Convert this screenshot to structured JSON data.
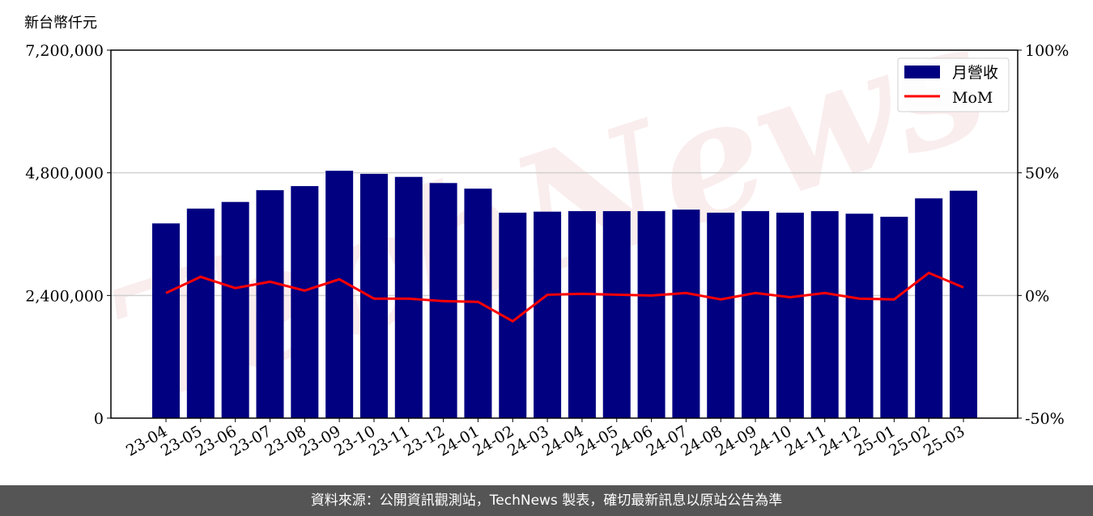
{
  "chart_data": {
    "type": "bar+line",
    "ylabel": "新台幣仟元",
    "ylim": [
      0,
      7200000
    ],
    "yticks": [
      "0",
      "2,400,000",
      "4,800,000",
      "7,200,000"
    ],
    "ylim_right": [
      -50,
      100
    ],
    "yticks_right": [
      "-50%",
      "0%",
      "50%",
      "100%"
    ],
    "grid": "horizontal",
    "legend_placement": "top-right",
    "categories": [
      "23-04",
      "23-05",
      "23-06",
      "23-07",
      "23-08",
      "23-09",
      "23-10",
      "23-11",
      "23-12",
      "24-01",
      "24-02",
      "24-03",
      "24-04",
      "24-05",
      "24-06",
      "24-07",
      "24-08",
      "24-09",
      "24-10",
      "24-11",
      "24-12",
      "25-01",
      "25-02",
      "25-03"
    ],
    "series": [
      {
        "name": "月營收",
        "type": "bar",
        "axis": "left",
        "color": "#000080",
        "values": [
          3810000,
          4100000,
          4230000,
          4460000,
          4540000,
          4840000,
          4780000,
          4720000,
          4600000,
          4490000,
          4020000,
          4040000,
          4050000,
          4050000,
          4050000,
          4080000,
          4020000,
          4050000,
          4020000,
          4050000,
          4000000,
          3940000,
          4300000,
          4450000
        ]
      },
      {
        "name": "MoM",
        "type": "line",
        "axis": "right",
        "color": "#ff0000",
        "values": [
          1.0,
          7.6,
          3.0,
          5.6,
          2.0,
          6.6,
          -1.3,
          -1.3,
          -2.3,
          -2.6,
          -10.5,
          0.3,
          0.7,
          0.3,
          0.0,
          1.0,
          -1.6,
          1.0,
          -0.7,
          1.0,
          -1.3,
          -1.6,
          9.2,
          3.3
        ]
      }
    ]
  },
  "watermark": "TechNews",
  "footer": {
    "source": "資料來源：公開資訊觀測站，TechNews 製表，確切最新訊息以原站公告為準"
  }
}
